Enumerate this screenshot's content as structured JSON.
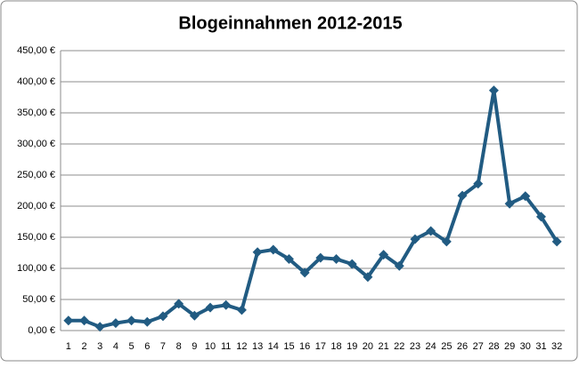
{
  "chart_data": {
    "type": "line",
    "title": "Blogeinnahmen 2012-2015",
    "categories": [
      "1",
      "2",
      "3",
      "4",
      "5",
      "6",
      "7",
      "8",
      "9",
      "10",
      "11",
      "12",
      "13",
      "14",
      "15",
      "16",
      "17",
      "18",
      "19",
      "20",
      "21",
      "22",
      "23",
      "24",
      "25",
      "26",
      "27",
      "28",
      "29",
      "30",
      "31",
      "32"
    ],
    "values": [
      16,
      16,
      6,
      12,
      16,
      14,
      23,
      43,
      24,
      37,
      41,
      33,
      126,
      130,
      115,
      93,
      117,
      115,
      107,
      86,
      122,
      104,
      147,
      160,
      143,
      217,
      236,
      386,
      204,
      216,
      183,
      143
    ],
    "color": "#215b82",
    "ylim": [
      0,
      450
    ],
    "yticks": [
      {
        "value": 0,
        "label": "0,00 €"
      },
      {
        "value": 50,
        "label": "50,00 €"
      },
      {
        "value": 100,
        "label": "100,00 €"
      },
      {
        "value": 150,
        "label": "150,00 €"
      },
      {
        "value": 200,
        "label": "200,00 €"
      },
      {
        "value": 250,
        "label": "250,00 €"
      },
      {
        "value": 300,
        "label": "300,00 €"
      },
      {
        "value": 350,
        "label": "350,00 €"
      },
      {
        "value": 400,
        "label": "400,00 €"
      },
      {
        "value": 450,
        "label": "450,00 €"
      }
    ],
    "grid": true
  }
}
